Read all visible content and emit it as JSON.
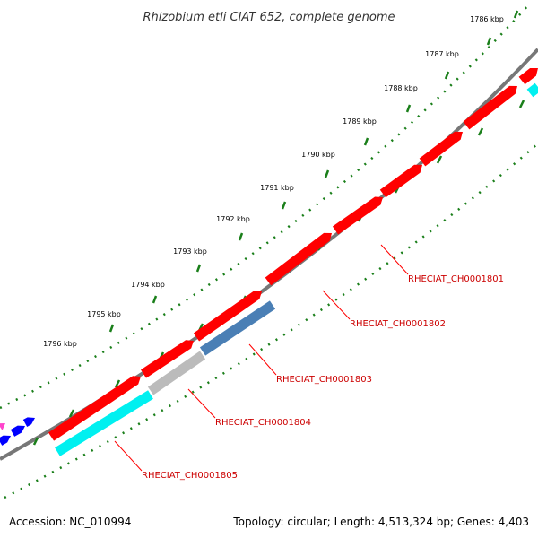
{
  "title": "Rhizobium etli CIAT 652, complete genome",
  "ticks": [
    {
      "label": "1786 kbp",
      "kbp": 1786
    },
    {
      "label": "1787 kbp",
      "kbp": 1787
    },
    {
      "label": "1788 kbp",
      "kbp": 1788
    },
    {
      "label": "1789 kbp",
      "kbp": 1789
    },
    {
      "label": "1790 kbp",
      "kbp": 1790
    },
    {
      "label": "1791 kbp",
      "kbp": 1791
    },
    {
      "label": "1792 kbp",
      "kbp": 1792
    },
    {
      "label": "1793 kbp",
      "kbp": 1793
    },
    {
      "label": "1794 kbp",
      "kbp": 1794
    },
    {
      "label": "1795 kbp",
      "kbp": 1795
    },
    {
      "label": "1796 kbp",
      "kbp": 1796
    }
  ],
  "genes": [
    {
      "label": "RHECIAT_CH0001801",
      "color": "#ff0000"
    },
    {
      "label": "RHECIAT_CH0001802",
      "color": "#ff0000"
    },
    {
      "label": "RHECIAT_CH0001803",
      "color": "#ff0000"
    },
    {
      "label": "RHECIAT_CH0001804",
      "color": "#ff0000"
    },
    {
      "label": "RHECIAT_CH0001805",
      "color": "#ff0000"
    }
  ],
  "colors": {
    "backbone": "#777777",
    "tick_marks": "#1a7f1a",
    "forward_genes": "#ff0000",
    "reverse_steelblue": "#4a7fb5",
    "reverse_gray": "#bbbbbb",
    "reverse_cyan": "#00f0f0",
    "other_blue": "#0000ff",
    "other_magenta": "#ff44cc",
    "label_text": "#cc0000"
  },
  "footer": {
    "accession": "Accession: NC_010994",
    "summary": "Topology: circular; Length: 4,513,324 bp; Genes: 4,403"
  }
}
